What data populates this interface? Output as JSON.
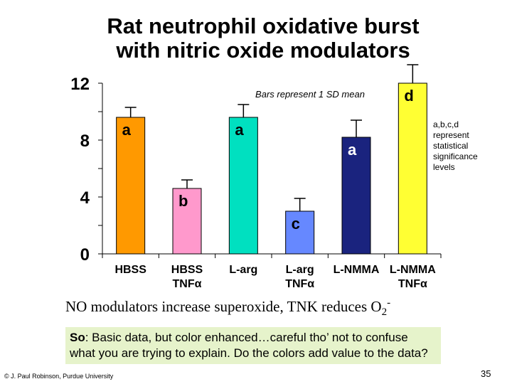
{
  "slide": {
    "title_line1": "Rat neutrophil oxidative burst",
    "title_line2": "with nitric oxide modulators",
    "caption": "NO modulators increase superoxide, TNK reduces O",
    "caption_sub": "2",
    "caption_sup": "-",
    "note_bold": "So",
    "note_text": ": Basic data, but color enhanced…careful tho’ not to confuse what you are trying to explain. Do the colors add value to the data?",
    "credit": "© J. Paul Robinson, Purdue University",
    "page_number": "35"
  },
  "chart_data": {
    "type": "bar",
    "categories": [
      [
        "HBSS"
      ],
      [
        "HBSS",
        "TNFα"
      ],
      [
        "L-arg"
      ],
      [
        "L-arg",
        "TNFα"
      ],
      [
        "L-NMMA"
      ],
      [
        "L-NMMA",
        "TNFα"
      ]
    ],
    "values": [
      9.6,
      4.6,
      9.6,
      3.0,
      8.2,
      12.0
    ],
    "error_sd": [
      0.7,
      0.6,
      0.9,
      0.9,
      1.2,
      1.3
    ],
    "significance_letters": [
      "a",
      "b",
      "a",
      "c",
      "a",
      "d"
    ],
    "colors": [
      "#ff9900",
      "#ff99cc",
      "#00e0c0",
      "#6688ff",
      "#1a237e",
      "#ffff33"
    ],
    "ylim": [
      0,
      12
    ],
    "yticks": [
      0,
      4,
      8,
      12
    ],
    "annotation_sd": "Bars represent 1 SD mean",
    "annotation_letters": "a,b,c,d represent statistical significance levels",
    "grid": false
  }
}
